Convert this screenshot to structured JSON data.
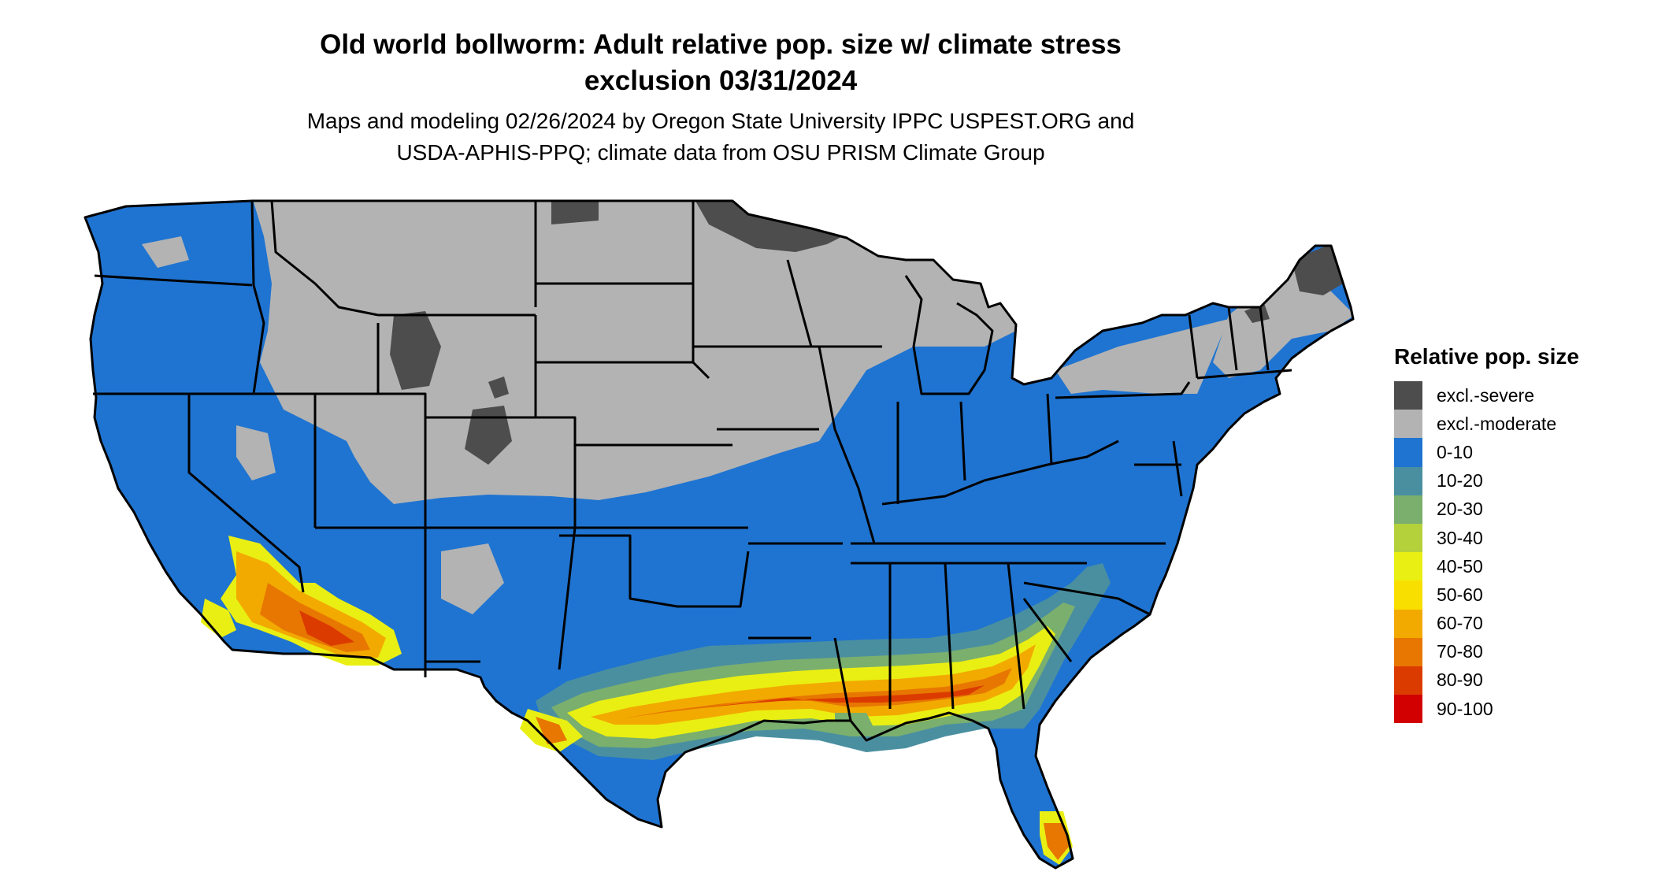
{
  "title_line1": "Old world bollworm: Adult relative pop. size w/ climate stress",
  "title_line2": "exclusion 03/31/2024",
  "subtitle_line1": "Maps and modeling 02/26/2024 by Oregon State University IPPC USPEST.ORG and",
  "subtitle_line2": "USDA-APHIS-PPQ; climate data from OSU PRISM Climate Group",
  "legend": {
    "title": "Relative pop. size",
    "items": [
      {
        "label": "excl.-severe",
        "color": "#4d4d4d"
      },
      {
        "label": "excl.-moderate",
        "color": "#b3b3b3"
      },
      {
        "label": "0-10",
        "color": "#1f74d1"
      },
      {
        "label": "10-20",
        "color": "#4a8fa0"
      },
      {
        "label": "20-30",
        "color": "#7aaf6e"
      },
      {
        "label": "30-40",
        "color": "#b4d13c"
      },
      {
        "label": "40-50",
        "color": "#e9ef12"
      },
      {
        "label": "50-60",
        "color": "#f9df00"
      },
      {
        "label": "60-70",
        "color": "#f2aa00"
      },
      {
        "label": "70-80",
        "color": "#e77700"
      },
      {
        "label": "80-90",
        "color": "#dc3b00"
      },
      {
        "label": "90-100",
        "color": "#d20000"
      }
    ]
  }
}
